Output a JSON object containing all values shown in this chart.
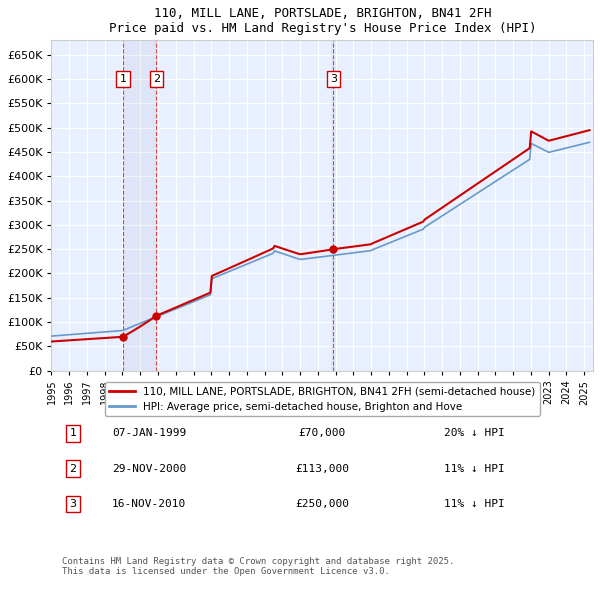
{
  "title": "110, MILL LANE, PORTSLADE, BRIGHTON, BN41 2FH",
  "subtitle": "Price paid vs. HM Land Registry's House Price Index (HPI)",
  "ylabel": "",
  "ylim": [
    0,
    680000
  ],
  "yticks": [
    0,
    50000,
    100000,
    150000,
    200000,
    250000,
    300000,
    350000,
    400000,
    450000,
    500000,
    550000,
    600000,
    650000
  ],
  "ytick_labels": [
    "£0",
    "£50K",
    "£100K",
    "£150K",
    "£200K",
    "£250K",
    "£300K",
    "£350K",
    "£400K",
    "£450K",
    "£500K",
    "£550K",
    "£600K",
    "£650K"
  ],
  "xlim_start": 1995.0,
  "xlim_end": 2025.5,
  "background_color": "#ffffff",
  "plot_bg_color": "#e8f0ff",
  "grid_color": "#ffffff",
  "sale_color": "#cc0000",
  "hpi_color": "#6699cc",
  "sale_label": "110, MILL LANE, PORTSLADE, BRIGHTON, BN41 2FH (semi-detached house)",
  "hpi_label": "HPI: Average price, semi-detached house, Brighton and Hove",
  "transactions": [
    {
      "date_year": 1999.03,
      "price": 70000,
      "label": "1",
      "hpi_diff": "20% ↓ HPI",
      "date_str": "07-JAN-1999"
    },
    {
      "date_year": 2000.91,
      "price": 113000,
      "label": "2",
      "hpi_diff": "11% ↓ HPI",
      "date_str": "29-NOV-2000"
    },
    {
      "date_year": 2010.88,
      "price": 250000,
      "label": "3",
      "hpi_diff": "11% ↓ HPI",
      "date_str": "16-NOV-2010"
    }
  ],
  "footer": "Contains HM Land Registry data © Crown copyright and database right 2025.\nThis data is licensed under the Open Government Licence v3.0.",
  "legend_label_1": "110, MILL LANE, PORTSLADE, BRIGHTON, BN41 2FH (semi-detached house)",
  "legend_label_2": "HPI: Average price, semi-detached house, Brighton and Hove"
}
